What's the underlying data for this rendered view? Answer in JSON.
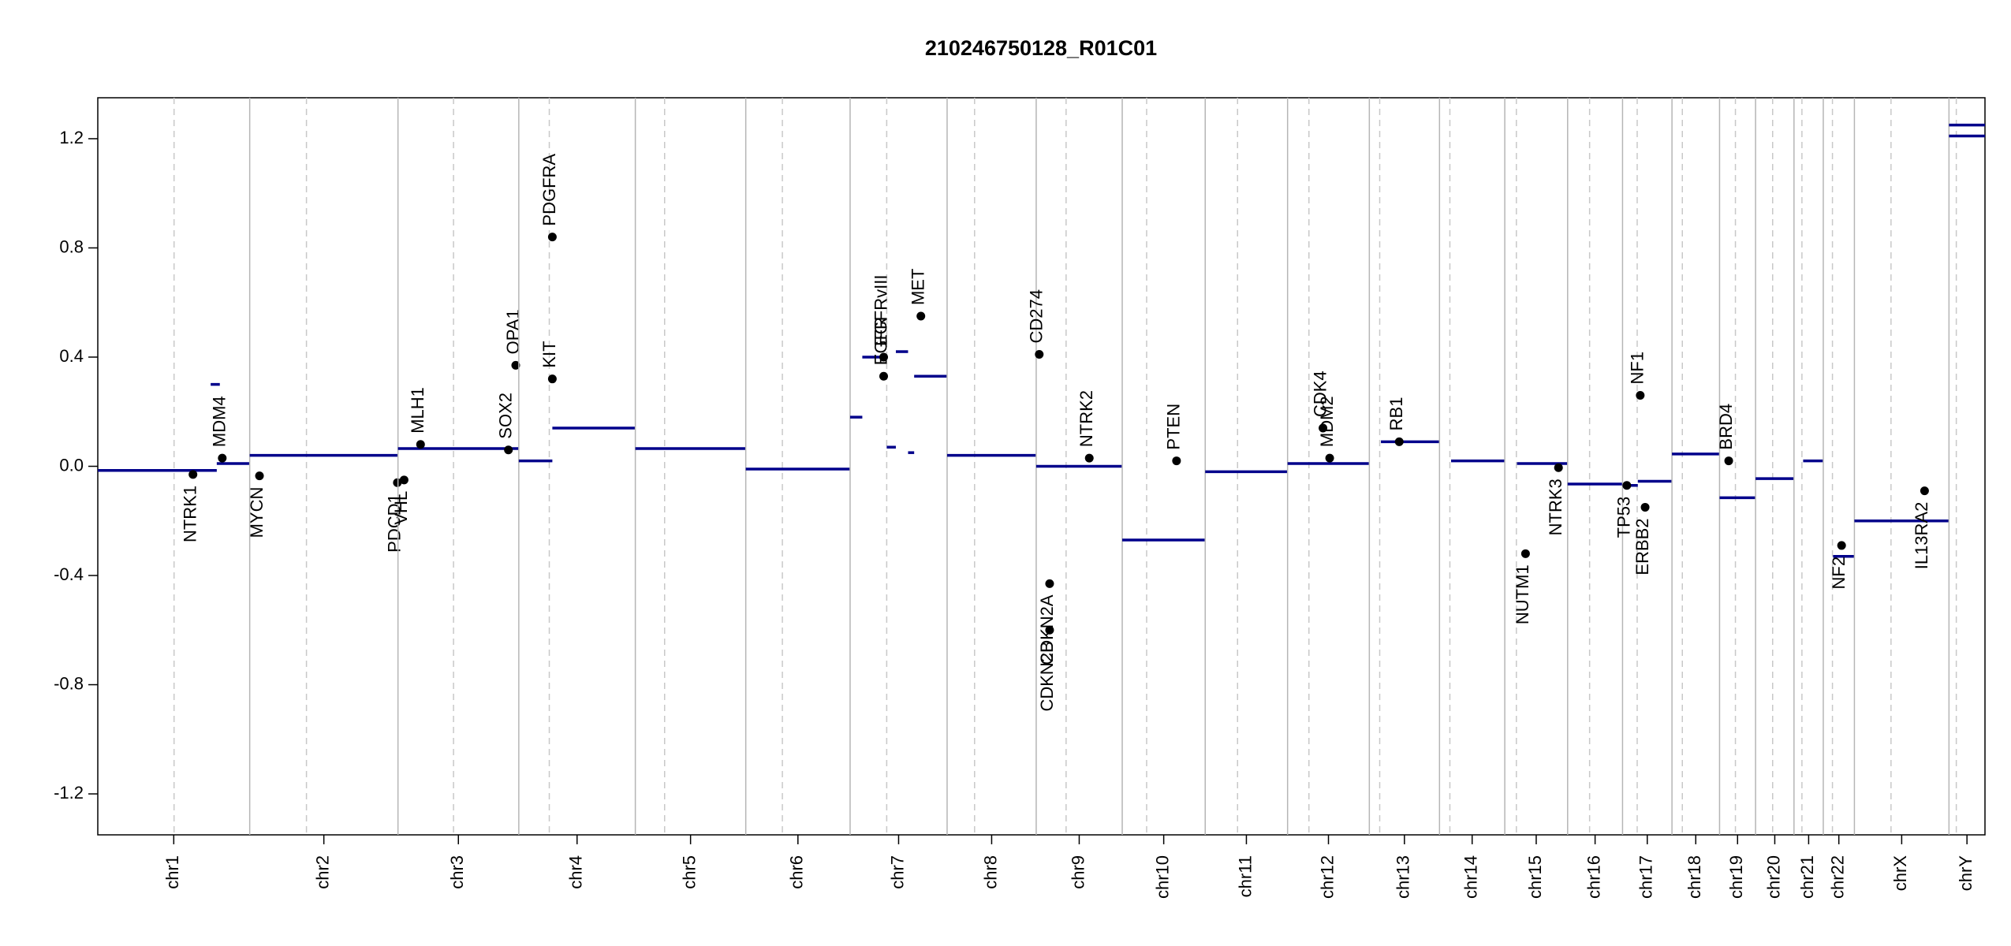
{
  "chart_data": {
    "type": "scatter",
    "title": "210246750128_R01C01",
    "ylim": [
      -1.35,
      1.35
    ],
    "yticks": [
      -1.2,
      -0.8,
      -0.4,
      {
        "value": 0,
        "label": "0.0"
      },
      0.4,
      0.8,
      1.2
    ],
    "segment_color": "#00008b",
    "gene_color": "#000000",
    "chromosomes": [
      {
        "name": "chr1",
        "length": 249,
        "centromere": 125,
        "segments": [
          {
            "start": 0,
            "end": 195,
            "value": -0.015
          },
          {
            "start": 195,
            "end": 249,
            "value": 0.01
          },
          {
            "start": 185,
            "end": 200,
            "value": 0.3
          }
        ],
        "genes": [
          {
            "name": "NTRK1",
            "pos": 156,
            "value": -0.03
          },
          {
            "name": "MDM4",
            "pos": 204,
            "value": 0.03
          }
        ]
      },
      {
        "name": "chr2",
        "length": 243,
        "centromere": 93,
        "segments": [
          {
            "start": 0,
            "end": 243,
            "value": 0.04
          }
        ],
        "genes": [
          {
            "name": "MYCN",
            "pos": 16,
            "value": -0.035
          },
          {
            "name": "PDCD1",
            "pos": 242,
            "value": -0.06
          }
        ]
      },
      {
        "name": "chr3",
        "length": 198,
        "centromere": 91,
        "segments": [
          {
            "start": 0,
            "end": 198,
            "value": 0.065
          }
        ],
        "genes": [
          {
            "name": "VHL",
            "pos": 10,
            "value": -0.05
          },
          {
            "name": "MLH1",
            "pos": 37,
            "value": 0.08
          },
          {
            "name": "SOX2",
            "pos": 181,
            "value": 0.06
          },
          {
            "name": "OPA1",
            "pos": 193,
            "value": 0.37
          }
        ]
      },
      {
        "name": "chr4",
        "length": 191,
        "centromere": 50,
        "segments": [
          {
            "start": 0,
            "end": 55,
            "value": 0.02
          },
          {
            "start": 55,
            "end": 191,
            "value": 0.14
          }
        ],
        "genes": [
          {
            "name": "KIT",
            "pos": 55,
            "value": 0.32
          },
          {
            "name": "PDGFRA",
            "pos": 55,
            "value": 0.84
          }
        ]
      },
      {
        "name": "chr5",
        "length": 181,
        "centromere": 48,
        "segments": [
          {
            "start": 0,
            "end": 181,
            "value": 0.065
          }
        ],
        "genes": []
      },
      {
        "name": "chr6",
        "length": 171,
        "centromere": 60,
        "segments": [
          {
            "start": 0,
            "end": 171,
            "value": -0.01
          }
        ],
        "genes": []
      },
      {
        "name": "chr7",
        "length": 159,
        "centromere": 60,
        "segments": [
          {
            "start": 0,
            "end": 20,
            "value": 0.18
          },
          {
            "start": 20,
            "end": 60,
            "value": 0.4
          },
          {
            "start": 60,
            "end": 75,
            "value": 0.07
          },
          {
            "start": 75,
            "end": 95,
            "value": 0.42
          },
          {
            "start": 95,
            "end": 105,
            "value": 0.05
          },
          {
            "start": 105,
            "end": 159,
            "value": 0.33
          }
        ],
        "genes": [
          {
            "name": "EGFR",
            "pos": 55,
            "value": 0.33
          },
          {
            "name": "EGFRvIII",
            "pos": 55,
            "value": 0.4
          },
          {
            "name": "MET",
            "pos": 116,
            "value": 0.55
          }
        ]
      },
      {
        "name": "chr8",
        "length": 146,
        "centromere": 45,
        "segments": [
          {
            "start": 0,
            "end": 146,
            "value": 0.04
          }
        ],
        "genes": []
      },
      {
        "name": "chr9",
        "length": 141,
        "centromere": 49,
        "segments": [
          {
            "start": 0,
            "end": 141,
            "value": 0.0
          }
        ],
        "genes": [
          {
            "name": "CD274",
            "pos": 5,
            "value": 0.41
          },
          {
            "name": "CDKN2A",
            "pos": 22,
            "value": -0.43
          },
          {
            "name": "CDKN2B",
            "pos": 22,
            "value": -0.6
          },
          {
            "name": "NTRK2",
            "pos": 87,
            "value": 0.03
          }
        ]
      },
      {
        "name": "chr10",
        "length": 136,
        "centromere": 40,
        "segments": [
          {
            "start": 0,
            "end": 136,
            "value": -0.27
          }
        ],
        "genes": [
          {
            "name": "PTEN",
            "pos": 89,
            "value": 0.02
          }
        ]
      },
      {
        "name": "chr11",
        "length": 135,
        "centromere": 53,
        "segments": [
          {
            "start": 0,
            "end": 135,
            "value": -0.02
          }
        ],
        "genes": []
      },
      {
        "name": "chr12",
        "length": 134,
        "centromere": 35,
        "segments": [
          {
            "start": 0,
            "end": 134,
            "value": 0.01
          }
        ],
        "genes": [
          {
            "name": "CDK4",
            "pos": 58,
            "value": 0.14
          },
          {
            "name": "MDM2",
            "pos": 69,
            "value": 0.03
          }
        ]
      },
      {
        "name": "chr13",
        "length": 115,
        "centromere": 17,
        "segments": [
          {
            "start": 19,
            "end": 115,
            "value": 0.09
          }
        ],
        "genes": [
          {
            "name": "RB1",
            "pos": 49,
            "value": 0.09
          }
        ]
      },
      {
        "name": "chr14",
        "length": 107,
        "centromere": 17,
        "segments": [
          {
            "start": 19,
            "end": 107,
            "value": 0.02
          }
        ],
        "genes": []
      },
      {
        "name": "chr15",
        "length": 103,
        "centromere": 19,
        "segments": [
          {
            "start": 20,
            "end": 103,
            "value": 0.01
          }
        ],
        "genes": [
          {
            "name": "NUTM1",
            "pos": 34,
            "value": -0.32
          },
          {
            "name": "NTRK3",
            "pos": 88,
            "value": -0.005
          }
        ]
      },
      {
        "name": "chr16",
        "length": 90,
        "centromere": 36,
        "segments": [
          {
            "start": 0,
            "end": 90,
            "value": -0.065
          }
        ],
        "genes": []
      },
      {
        "name": "chr17",
        "length": 81,
        "centromere": 24,
        "segments": [
          {
            "start": 0,
            "end": 25,
            "value": -0.07
          },
          {
            "start": 25,
            "end": 81,
            "value": -0.055
          }
        ],
        "genes": [
          {
            "name": "TP53",
            "pos": 7,
            "value": -0.07
          },
          {
            "name": "NF1",
            "pos": 29,
            "value": 0.26
          },
          {
            "name": "ERBB2",
            "pos": 37,
            "value": -0.15
          }
        ]
      },
      {
        "name": "chr18",
        "length": 78,
        "centromere": 17,
        "segments": [
          {
            "start": 0,
            "end": 78,
            "value": 0.045
          }
        ],
        "genes": []
      },
      {
        "name": "chr19",
        "length": 59,
        "centromere": 26,
        "segments": [
          {
            "start": 0,
            "end": 59,
            "value": -0.115
          }
        ],
        "genes": [
          {
            "name": "BRD4",
            "pos": 15,
            "value": 0.02
          }
        ]
      },
      {
        "name": "chr20",
        "length": 63,
        "centromere": 28,
        "segments": [
          {
            "start": 0,
            "end": 63,
            "value": -0.045
          }
        ],
        "genes": []
      },
      {
        "name": "chr21",
        "length": 48,
        "centromere": 13,
        "segments": [
          {
            "start": 15,
            "end": 48,
            "value": 0.02
          }
        ],
        "genes": []
      },
      {
        "name": "chr22",
        "length": 51,
        "centromere": 15,
        "segments": [
          {
            "start": 16,
            "end": 51,
            "value": -0.33
          }
        ],
        "genes": [
          {
            "name": "NF2",
            "pos": 30,
            "value": -0.29
          }
        ]
      },
      {
        "name": "chrX",
        "length": 155,
        "centromere": 60,
        "segments": [
          {
            "start": 0,
            "end": 155,
            "value": -0.2
          }
        ],
        "genes": [
          {
            "name": "IL13RA2",
            "pos": 115,
            "value": -0.09
          }
        ]
      },
      {
        "name": "chrY",
        "length": 59,
        "centromere": 12,
        "segments": [
          {
            "start": 0,
            "end": 59,
            "value": 1.21
          },
          {
            "start": 0,
            "end": 59,
            "value": 1.25
          }
        ],
        "genes": []
      }
    ]
  }
}
